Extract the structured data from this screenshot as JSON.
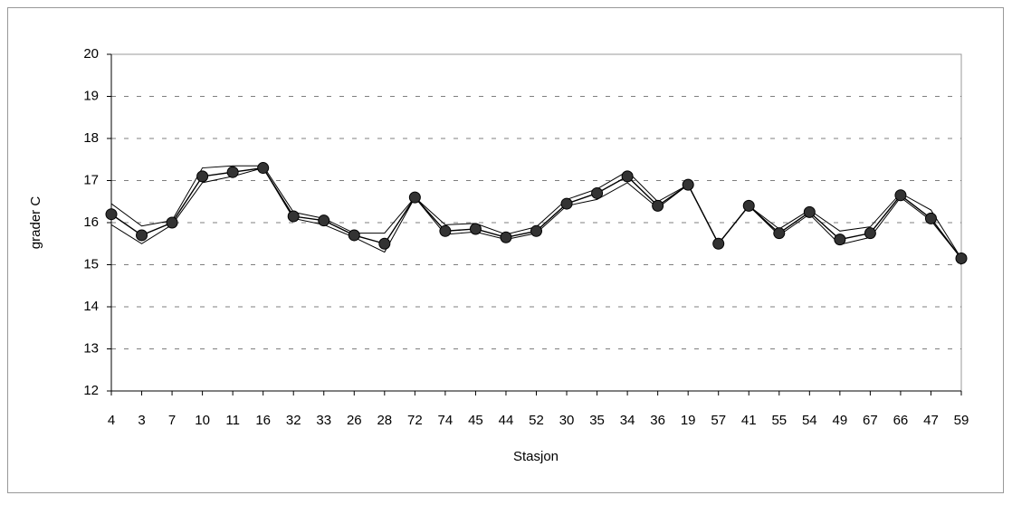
{
  "chart_data": {
    "type": "line",
    "x_label": "Stasjon",
    "y_label": "grader C",
    "categories": [
      "4",
      "3",
      "7",
      "10",
      "11",
      "16",
      "32",
      "33",
      "26",
      "28",
      "72",
      "74",
      "45",
      "44",
      "52",
      "30",
      "35",
      "34",
      "36",
      "19",
      "57",
      "41",
      "55",
      "54",
      "49",
      "67",
      "66",
      "47",
      "59"
    ],
    "series": [
      {
        "color": "#000000",
        "marker": true,
        "values": [
          16.2,
          15.7,
          16.0,
          17.1,
          17.2,
          17.3,
          16.15,
          16.05,
          15.7,
          15.5,
          16.6,
          15.8,
          15.85,
          15.65,
          15.8,
          16.45,
          16.7,
          17.1,
          16.4,
          16.9,
          15.5,
          16.4,
          15.75,
          16.25,
          15.6,
          15.75,
          16.65,
          16.1,
          15.15
        ]
      },
      {
        "color": "#000000",
        "marker": false,
        "values": [
          16.45,
          15.92,
          16.05,
          17.3,
          17.35,
          17.35,
          16.25,
          16.1,
          15.75,
          15.75,
          16.6,
          15.95,
          15.98,
          15.72,
          15.9,
          16.55,
          16.8,
          17.22,
          16.5,
          16.9,
          15.5,
          16.4,
          15.85,
          16.3,
          15.8,
          15.9,
          16.7,
          16.3,
          15.15
        ]
      },
      {
        "color": "#000000",
        "marker": false,
        "values": [
          15.95,
          15.5,
          15.95,
          16.95,
          17.1,
          17.3,
          16.1,
          15.95,
          15.65,
          15.3,
          16.6,
          15.72,
          15.78,
          15.6,
          15.75,
          16.4,
          16.55,
          16.95,
          16.35,
          16.9,
          15.5,
          16.4,
          15.7,
          16.2,
          15.48,
          15.65,
          16.6,
          16.05,
          15.15
        ]
      }
    ],
    "ylim": [
      12,
      20
    ],
    "yticks": [
      12,
      13,
      14,
      15,
      16,
      17,
      18,
      19,
      20
    ],
    "grid": true
  }
}
